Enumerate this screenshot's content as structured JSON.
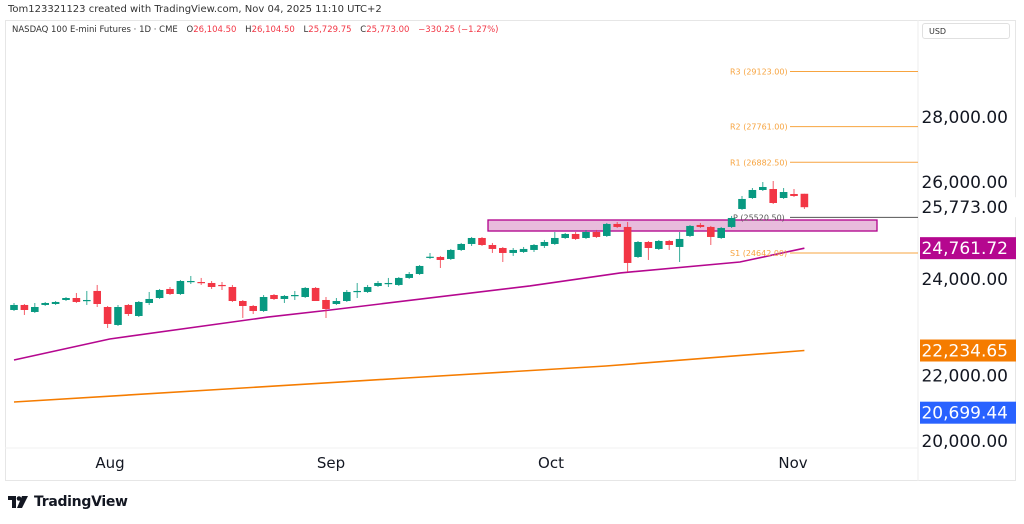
{
  "credit": "Tom123321123 created with TradingView.com, Nov 04, 2025 11:10 UTC+2",
  "legend": {
    "symbol": "NASDAQ 100 E-mini Futures · 1D · CME",
    "o_label": "O",
    "o": "26,104.50",
    "h_label": "H",
    "h": "26,104.50",
    "l_label": "L",
    "l": "25,729.75",
    "c_label": "C",
    "c": "25,773.00",
    "change": "−330.25 (−1.27%)"
  },
  "currency": "USD",
  "brand": "TradingView",
  "colors": {
    "up": "#089981",
    "down": "#f23645",
    "ma_short": "#b5078f",
    "ma_long": "#f57c00",
    "blue_label": "#2962ff",
    "pivot": "#f7a440",
    "pivot_p": "#555555",
    "zone_fill": "#e8bcdc",
    "zone_border": "#b0008b"
  },
  "chart_data": {
    "type": "candlestick",
    "title": "",
    "ylim": [
      19600,
      30000
    ],
    "y_ticks": [
      {
        "value": 28000,
        "label": "28,000.00"
      },
      {
        "value": 26000,
        "label": "26,000.00"
      },
      {
        "value": 24000,
        "label": "24,000.00"
      },
      {
        "value": 22000,
        "label": "22,000.00"
      },
      {
        "value": 20000,
        "label": "20,000.00"
      }
    ],
    "x_labels": [
      "Aug",
      "Sep",
      "Oct",
      "Nov"
    ],
    "candles": [
      [
        23235,
        23408,
        23211,
        23359
      ],
      [
        23359,
        23383,
        23112,
        23235
      ],
      [
        23186,
        23408,
        23161,
        23309
      ],
      [
        23359,
        23433,
        23334,
        23408
      ],
      [
        23383,
        23457,
        23359,
        23433
      ],
      [
        23482,
        23556,
        23457,
        23531
      ],
      [
        23531,
        23655,
        23408,
        23433
      ],
      [
        23457,
        23705,
        23359,
        23482
      ],
      [
        23705,
        23853,
        23309,
        23383
      ],
      [
        23309,
        23334,
        22791,
        22890
      ],
      [
        22865,
        23359,
        22840,
        23309
      ],
      [
        23359,
        23383,
        23087,
        23136
      ],
      [
        23087,
        23457,
        23062,
        23433
      ],
      [
        23408,
        23680,
        23359,
        23507
      ],
      [
        23531,
        23754,
        23507,
        23729
      ],
      [
        23754,
        23803,
        23605,
        23630
      ],
      [
        23630,
        23976,
        23605,
        23951
      ],
      [
        23926,
        24075,
        23877,
        23951
      ],
      [
        23926,
        24026,
        23853,
        23902
      ],
      [
        23902,
        23951,
        23754,
        23803
      ],
      [
        23853,
        23926,
        23729,
        23828
      ],
      [
        23803,
        23853,
        23433,
        23457
      ],
      [
        23457,
        23482,
        23038,
        23334
      ],
      [
        23334,
        23359,
        23136,
        23211
      ],
      [
        23211,
        23605,
        23186,
        23556
      ],
      [
        23605,
        23630,
        23482,
        23507
      ],
      [
        23507,
        23605,
        23408,
        23581
      ],
      [
        23581,
        23705,
        23482,
        23605
      ],
      [
        23556,
        23803,
        23531,
        23779
      ],
      [
        23779,
        23803,
        23457,
        23457
      ],
      [
        23482,
        23556,
        23038,
        23260
      ],
      [
        23383,
        23531,
        23359,
        23457
      ],
      [
        23457,
        23729,
        23433,
        23680
      ],
      [
        23680,
        23902,
        23531,
        23705
      ],
      [
        23680,
        23853,
        23655,
        23803
      ],
      [
        23828,
        23951,
        23803,
        23902
      ],
      [
        23877,
        24026,
        23803,
        23902
      ],
      [
        23853,
        24050,
        23828,
        24026
      ],
      [
        24026,
        24173,
        24001,
        24124
      ],
      [
        24124,
        24346,
        24100,
        24322
      ],
      [
        24544,
        24643,
        24495,
        24550
      ],
      [
        24544,
        24569,
        24272,
        24470
      ],
      [
        24495,
        24742,
        24470,
        24717
      ],
      [
        24717,
        24890,
        24692,
        24865
      ],
      [
        24865,
        25038,
        24816,
        25013
      ],
      [
        25013,
        25038,
        24816,
        24840
      ],
      [
        24840,
        24890,
        24643,
        24742
      ],
      [
        24766,
        24791,
        24420,
        24643
      ],
      [
        24643,
        24766,
        24569,
        24717
      ],
      [
        24668,
        24791,
        24643,
        24742
      ],
      [
        24717,
        24865,
        24668,
        24840
      ],
      [
        24816,
        24964,
        24766,
        24914
      ],
      [
        24865,
        25161,
        24840,
        25013
      ],
      [
        25013,
        25137,
        24989,
        25112
      ],
      [
        25112,
        25161,
        24964,
        24989
      ],
      [
        25013,
        25211,
        24989,
        25161
      ],
      [
        25161,
        25211,
        25013,
        25038
      ],
      [
        25063,
        25384,
        25038,
        25359
      ],
      [
        25359,
        25409,
        25260,
        25285
      ],
      [
        25285,
        25409,
        24173,
        24396
      ],
      [
        24544,
        24939,
        24519,
        24914
      ],
      [
        24914,
        24939,
        24470,
        24766
      ],
      [
        24742,
        24964,
        24717,
        24939
      ],
      [
        24939,
        24964,
        24717,
        24840
      ],
      [
        24791,
        25161,
        24420,
        24989
      ],
      [
        25063,
        25334,
        25038,
        25310
      ],
      [
        25334,
        25384,
        25260,
        25285
      ],
      [
        25285,
        25310,
        24840,
        25038
      ],
      [
        25013,
        25285,
        24989,
        25260
      ],
      [
        25285,
        25557,
        25260,
        25507
      ],
      [
        25729,
        26050,
        25705,
        25976
      ],
      [
        26000,
        26247,
        25976,
        26198
      ],
      [
        26198,
        26395,
        26173,
        26272
      ],
      [
        26222,
        26420,
        25852,
        25877
      ],
      [
        26000,
        26247,
        25976,
        26148
      ],
      [
        26099,
        26222,
        26025,
        26050
      ],
      [
        26104.5,
        26104.5,
        25729.75,
        25773
      ]
    ],
    "moving_averages": [
      {
        "color_key": "ma_short",
        "points": [
          [
            0,
            22000
          ],
          [
            9.2,
            22520
          ],
          [
            24.4,
            23060
          ],
          [
            30.4,
            23235
          ],
          [
            49.6,
            23830
          ],
          [
            58.3,
            24150
          ],
          [
            69.8,
            24420
          ],
          [
            76,
            24761.72
          ]
        ],
        "last_label": "24,761.72"
      },
      {
        "color_key": "ma_long",
        "points": [
          [
            0,
            20963
          ],
          [
            37.7,
            21556
          ],
          [
            56.9,
            21852
          ],
          [
            76,
            22234.65
          ]
        ],
        "last_label": "22,234.65"
      }
    ],
    "extra_labels": [
      {
        "label": "25,773.00",
        "value": 25773,
        "style": "plain"
      },
      {
        "label": "20,699.44",
        "value": 20699.44,
        "style": "blue_label"
      }
    ],
    "pivots": [
      {
        "label": "R3 (29123.00)",
        "value": 29123,
        "kind": "r"
      },
      {
        "label": "R2 (27761.00)",
        "value": 27761,
        "kind": "r"
      },
      {
        "label": "R1 (26882.50)",
        "value": 26882.5,
        "kind": "r"
      },
      {
        "label": "P (25520.50)",
        "value": 25520.5,
        "kind": "p"
      },
      {
        "label": "S1 (24642.00)",
        "value": 24642,
        "kind": "s"
      }
    ],
    "zone": {
      "top": 25457,
      "bottom": 25185,
      "start_bar": 46,
      "end_bar": 83
    }
  }
}
